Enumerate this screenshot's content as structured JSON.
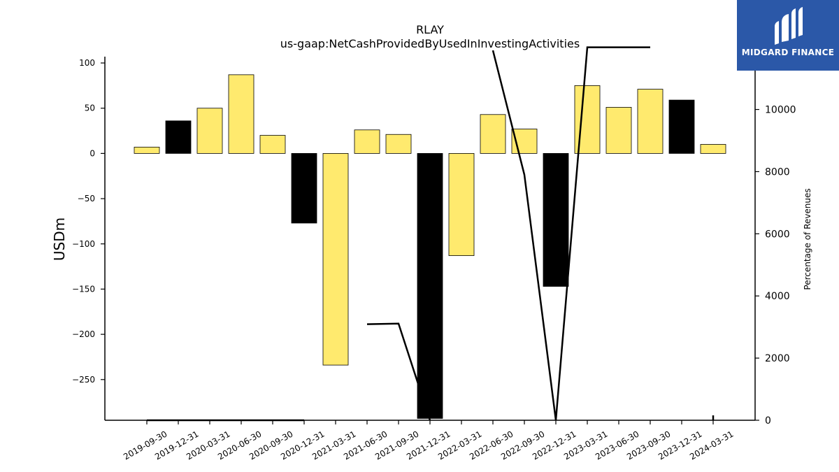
{
  "chart_data": {
    "type": "bar",
    "title": "RLAY",
    "subtitle": "us-gaap:NetCashProvidedByUsedInInvestingActivities",
    "ylabel": "USDm",
    "y2label": "Percentage of Revenues",
    "categories": [
      "2019-09-30",
      "2019-12-31",
      "2020-03-31",
      "2020-06-30",
      "2020-09-30",
      "2020-12-31",
      "2021-03-31",
      "2021-06-30",
      "2021-09-30",
      "2021-12-31",
      "2022-03-31",
      "2022-06-30",
      "2022-09-30",
      "2022-12-31",
      "2023-03-31",
      "2023-06-30",
      "2023-09-30",
      "2023-12-31",
      "2024-03-31"
    ],
    "values": [
      7,
      36,
      50,
      87,
      20,
      -77,
      -234,
      26,
      21,
      -293,
      -113,
      43,
      27,
      -147,
      75,
      51,
      71,
      59,
      10
    ],
    "bar_colors": [
      "#ffea6e",
      "#000000",
      "#ffea6e",
      "#ffea6e",
      "#ffea6e",
      "#000000",
      "#ffea6e",
      "#ffea6e",
      "#ffea6e",
      "#000000",
      "#ffea6e",
      "#ffea6e",
      "#ffea6e",
      "#000000",
      "#ffea6e",
      "#ffea6e",
      "#ffea6e",
      "#000000",
      "#ffea6e"
    ],
    "ylim": [
      -295,
      107
    ],
    "yticks": [
      100,
      50,
      0,
      -50,
      -100,
      -150,
      -200,
      -250
    ],
    "line_series": {
      "values": [
        0,
        0,
        0,
        0,
        0,
        0,
        null,
        3090,
        3110,
        0,
        null,
        11900,
        7900,
        0,
        12000,
        12000,
        12000,
        null,
        0
      ],
      "ylim": [
        0,
        11700
      ],
      "yticks": [
        0,
        2000,
        4000,
        6000,
        8000,
        10000
      ]
    },
    "grid": false
  },
  "logo": {
    "text": "MIDGARD FINANCE"
  },
  "colors": {
    "bar_positive": "#ffea6e",
    "bar_emphasis": "#000000",
    "logo_bg": "#2b58a8"
  }
}
